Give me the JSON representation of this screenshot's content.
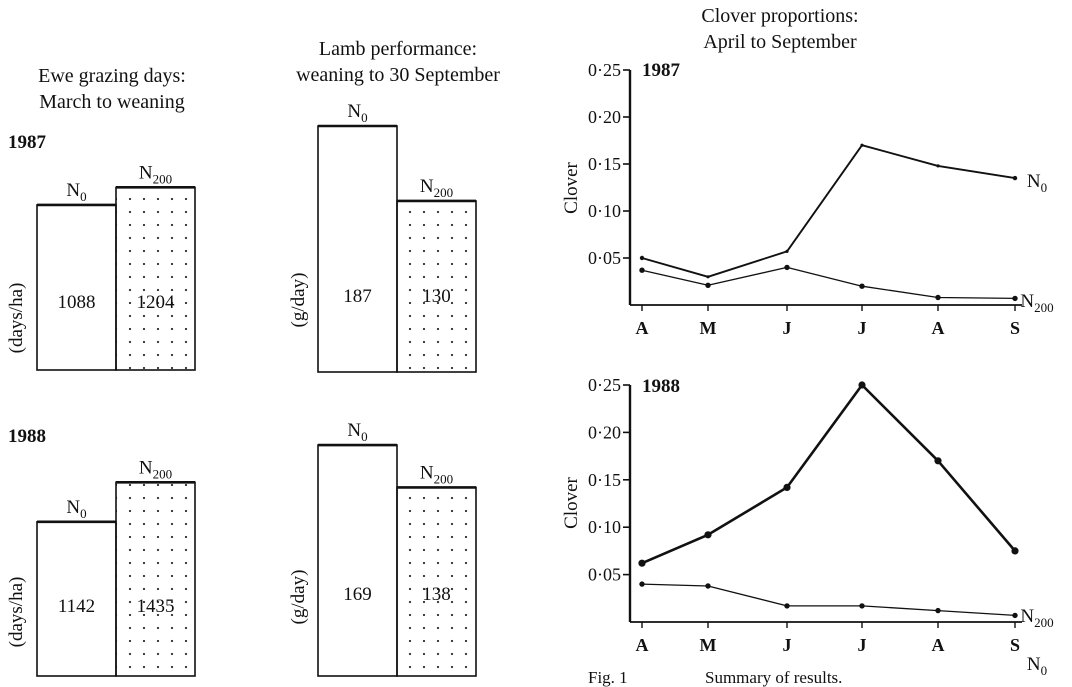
{
  "headers": {
    "ewe": [
      "Ewe grazing days:",
      "March to weaning"
    ],
    "lamb": [
      "Lamb performance:",
      "weaning to 30 September"
    ],
    "clover": [
      "Clover proportions:",
      "April to September"
    ]
  },
  "caption": {
    "label": "Fig. 1",
    "text": "Summary of results."
  },
  "treatments": [
    {
      "base": "N",
      "sub": "0"
    },
    {
      "base": "N",
      "sub": "200"
    }
  ],
  "colors": {
    "ink": "#111111",
    "dot": "#333333"
  },
  "chart_data": [
    {
      "id": "ewe-1987",
      "type": "bar",
      "year": "1987",
      "ylabel": "(days/ha)",
      "categories": [
        "N0",
        "N200"
      ],
      "values": [
        1088,
        1204
      ],
      "value_labels": [
        "1088",
        "1204"
      ],
      "ylim": [
        0,
        1450
      ]
    },
    {
      "id": "ewe-1988",
      "type": "bar",
      "year": "1988",
      "ylabel": "(days/ha)",
      "categories": [
        "N0",
        "N200"
      ],
      "values": [
        1142,
        1435
      ],
      "value_labels": [
        "1142",
        "1435"
      ],
      "ylim": [
        0,
        1740
      ]
    },
    {
      "id": "lamb-1987",
      "type": "bar",
      "year": "1987",
      "ylabel": "(g/day)",
      "categories": [
        "N0",
        "N200"
      ],
      "values": [
        187,
        130
      ],
      "value_labels": [
        "187",
        "130"
      ],
      "ylim": [
        0,
        193
      ]
    },
    {
      "id": "lamb-1988",
      "type": "bar",
      "year": "1988",
      "ylabel": "(g/day)",
      "categories": [
        "N0",
        "N200"
      ],
      "values": [
        169,
        138
      ],
      "value_labels": [
        "169",
        "138"
      ],
      "ylim": [
        0,
        183
      ]
    },
    {
      "id": "clover-1987",
      "type": "line",
      "year": "1987",
      "ylabel": "Clover",
      "x": [
        "A",
        "M",
        "J",
        "J",
        "A",
        "S"
      ],
      "yticks": [
        0.05,
        0.1,
        0.15,
        0.2,
        0.25
      ],
      "ytick_labels": [
        "0·05",
        "0·10",
        "0·15",
        "0·20",
        "0·25"
      ],
      "ylim": [
        0,
        0.25
      ],
      "series": [
        {
          "name": "N0",
          "values": [
            0.05,
            0.03,
            0.057,
            0.17,
            0.148,
            0.135
          ],
          "markers": false
        },
        {
          "name": "N200",
          "values": [
            0.037,
            0.021,
            0.04,
            0.02,
            0.008,
            0.007
          ],
          "markers": true
        }
      ]
    },
    {
      "id": "clover-1988",
      "type": "line",
      "year": "1988",
      "ylabel": "Clover",
      "x": [
        "A",
        "M",
        "J",
        "J",
        "A",
        "S"
      ],
      "yticks": [
        0.05,
        0.1,
        0.15,
        0.2,
        0.25
      ],
      "ytick_labels": [
        "0·05",
        "0·10",
        "0·15",
        "0·20",
        "0·25"
      ],
      "ylim": [
        0,
        0.25
      ],
      "series": [
        {
          "name": "N0",
          "values": [
            0.062,
            0.092,
            0.142,
            0.25,
            0.17,
            0.075
          ],
          "markers": true
        },
        {
          "name": "N200",
          "values": [
            0.04,
            0.038,
            0.017,
            0.017,
            0.012,
            0.007
          ],
          "markers": true
        }
      ]
    }
  ]
}
